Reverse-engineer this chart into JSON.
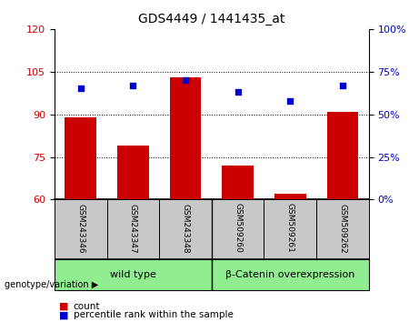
{
  "title": "GDS4449 / 1441435_at",
  "samples": [
    "GSM243346",
    "GSM243347",
    "GSM243348",
    "GSM509260",
    "GSM509261",
    "GSM509262"
  ],
  "bar_values": [
    89,
    79,
    103,
    72,
    62,
    91
  ],
  "percentile_values": [
    65,
    67,
    70,
    63,
    58,
    67
  ],
  "bar_color": "#cc0000",
  "dot_color": "#0000cc",
  "ylim_left": [
    60,
    120
  ],
  "ylim_right": [
    0,
    100
  ],
  "yticks_left": [
    60,
    75,
    90,
    105,
    120
  ],
  "yticks_right": [
    0,
    25,
    50,
    75,
    100
  ],
  "grid_yticks": [
    75,
    90,
    105
  ],
  "groups": [
    {
      "label": "wild type",
      "start": 0,
      "end": 3,
      "color": "#90ee90"
    },
    {
      "label": "β-Catenin overexpression",
      "start": 3,
      "end": 6,
      "color": "#90ee90"
    }
  ],
  "group_divider": 2.5,
  "group_label": "genotype/variation",
  "legend_count": "count",
  "legend_pct": "percentile rank within the sample",
  "bar_width": 0.6,
  "sample_box_color": "#c8c8c8",
  "bg_color": "#ffffff"
}
